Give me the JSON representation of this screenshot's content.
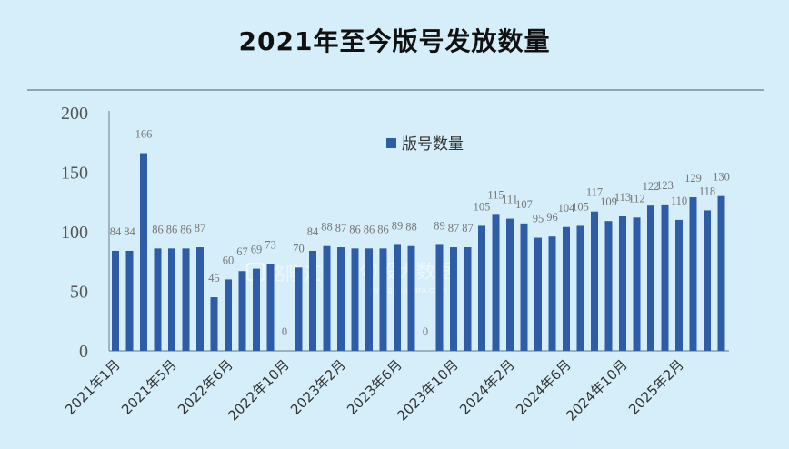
{
  "colors": {
    "background": "#d5eef9",
    "bar": "#2f5ca6",
    "axis": "#7d8d98",
    "divider": "#8ca4b3"
  },
  "watermark": {
    "brand_primary": "格隆汇",
    "brand_secondary": "勾股大数据",
    "url": "www.gogudata.com"
  },
  "chart_data": {
    "type": "bar",
    "title": "2021年至今版号发放数量",
    "xlabel": "",
    "ylabel": "",
    "ylim": [
      0,
      200
    ],
    "yticks": [
      0,
      50,
      100,
      150,
      200
    ],
    "grid": false,
    "legend_position": "top-center",
    "data_labels": true,
    "categories": [
      "2021年1月",
      "",
      "",
      "",
      "2021年5月",
      "",
      "",
      "",
      "2022年6月",
      "",
      "",
      "",
      "2022年10月",
      "",
      "",
      "",
      "2023年2月",
      "",
      "",
      "",
      "2023年6月",
      "",
      "",
      "",
      "2023年10月",
      "",
      "",
      "",
      "2024年2月",
      "",
      "",
      "",
      "2024年6月",
      "",
      "",
      "",
      "2024年10月",
      "",
      "",
      "",
      "2025年2月",
      "",
      "",
      ""
    ],
    "series": [
      {
        "name": "版号数量",
        "values": [
          84,
          84,
          166,
          86,
          86,
          86,
          87,
          45,
          60,
          67,
          69,
          73,
          0,
          70,
          84,
          88,
          87,
          86,
          86,
          86,
          89,
          88,
          0,
          89,
          87,
          87,
          105,
          115,
          111,
          107,
          95,
          96,
          104,
          105,
          117,
          109,
          113,
          112,
          122,
          123,
          110,
          129,
          118,
          130
        ]
      }
    ]
  }
}
